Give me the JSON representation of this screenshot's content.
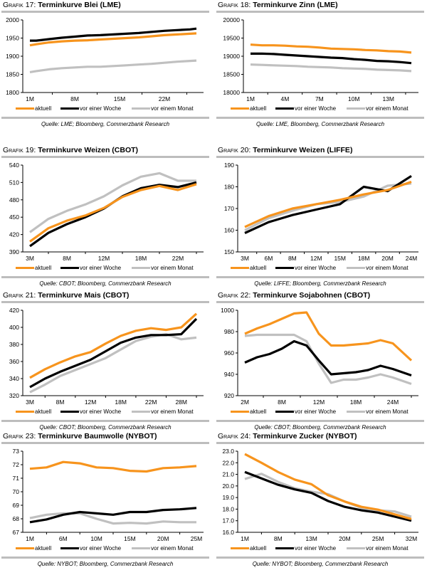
{
  "legend": {
    "aktuell": "aktuell",
    "woche": "vor einer Woche",
    "monat": "vor einem Monat"
  },
  "colors": {
    "aktuell": "#f7941d",
    "woche": "#000000",
    "monat": "#c0c0c0"
  },
  "chart_data": [
    {
      "type": "line",
      "grafik_label": "Grafik 17:",
      "title": "Terminkurve Blei (LME)",
      "source": "Quelle: LME; Bloomberg, Commerzbank Research",
      "xlabel": "",
      "ylabel": "",
      "x_ticks": [
        "1M",
        "8M",
        "15M",
        "22M"
      ],
      "x_tick_positions": [
        1,
        8,
        15,
        22
      ],
      "x_range": [
        1,
        27
      ],
      "ylim": [
        1800,
        2000
      ],
      "y_ticks": [
        1800,
        1850,
        1900,
        1950,
        2000
      ],
      "y_decimals": 0,
      "grid": false,
      "legend_position": "bottom",
      "x": [
        1,
        2,
        4,
        6,
        8,
        10,
        12,
        14,
        16,
        18,
        20,
        22,
        24,
        26,
        27
      ],
      "series": [
        {
          "name": "aktuell",
          "values": [
            1930,
            1933,
            1938,
            1941,
            1943,
            1944,
            1946,
            1948,
            1950,
            1952,
            1955,
            1958,
            1960,
            1962,
            1963
          ]
        },
        {
          "name": "vor einer Woche",
          "values": [
            1943,
            1943,
            1947,
            1951,
            1954,
            1957,
            1958,
            1960,
            1962,
            1964,
            1967,
            1970,
            1972,
            1974,
            1976
          ]
        },
        {
          "name": "vor einem Monat",
          "values": [
            1856,
            1859,
            1864,
            1867,
            1869,
            1871,
            1871,
            1873,
            1875,
            1877,
            1879,
            1882,
            1885,
            1887,
            1888
          ]
        }
      ]
    },
    {
      "type": "line",
      "grafik_label": "Grafik 18:",
      "title": "Terminkurve Zinn (LME)",
      "source": "Quelle: LME, Bloomberg, Commerzbank Research",
      "xlabel": "",
      "ylabel": "",
      "x_ticks": [
        "1M",
        "4M",
        "7M",
        "10M",
        "13M"
      ],
      "x_tick_positions": [
        1,
        4,
        7,
        10,
        13
      ],
      "x_range": [
        1,
        15
      ],
      "ylim": [
        18000,
        20000
      ],
      "y_ticks": [
        18000,
        18500,
        19000,
        19500,
        20000
      ],
      "y_decimals": 0,
      "grid": false,
      "legend_position": "bottom",
      "x": [
        1,
        2,
        3,
        4,
        5,
        6,
        7,
        8,
        9,
        10,
        11,
        12,
        13,
        14,
        15
      ],
      "series": [
        {
          "name": "aktuell",
          "values": [
            19320,
            19300,
            19300,
            19290,
            19270,
            19260,
            19240,
            19210,
            19200,
            19190,
            19170,
            19160,
            19140,
            19130,
            19100
          ]
        },
        {
          "name": "vor einer Woche",
          "values": [
            19070,
            19070,
            19060,
            19040,
            19020,
            19000,
            18980,
            18960,
            18950,
            18920,
            18900,
            18870,
            18860,
            18840,
            18810
          ]
        },
        {
          "name": "vor einem Monat",
          "values": [
            18770,
            18760,
            18750,
            18740,
            18730,
            18710,
            18700,
            18690,
            18670,
            18660,
            18650,
            18630,
            18620,
            18610,
            18590
          ]
        }
      ]
    },
    {
      "type": "line",
      "grafik_label": "Grafik 19:",
      "title": "Terminkurve Weizen (CBOT)",
      "source": "Quelle: CBOT; Bloomberg, Commerzbank Research",
      "xlabel": "",
      "ylabel": "",
      "x_ticks": [
        "3M",
        "8M",
        "12M",
        "18M",
        "22M"
      ],
      "x_tick_positions": [
        0,
        2,
        4,
        6,
        8
      ],
      "x_range": [
        0,
        9
      ],
      "ylim": [
        390,
        540
      ],
      "y_ticks": [
        390,
        420,
        450,
        480,
        510,
        540
      ],
      "y_decimals": 0,
      "grid": false,
      "legend_position": "bottom",
      "x": [
        0,
        1,
        2,
        3,
        4,
        5,
        6,
        7,
        8,
        9
      ],
      "series": [
        {
          "name": "aktuell",
          "values": [
            408,
            431,
            444,
            453,
            466,
            485,
            497,
            504,
            497,
            507
          ]
        },
        {
          "name": "vor einer Woche",
          "values": [
            400,
            423,
            438,
            450,
            465,
            486,
            500,
            506,
            502,
            510
          ]
        },
        {
          "name": "vor einem Monat",
          "values": [
            424,
            447,
            461,
            472,
            486,
            505,
            520,
            526,
            513,
            513
          ]
        }
      ]
    },
    {
      "type": "line",
      "grafik_label": "Grafik 20:",
      "title": "Terminkurve Weizen (LIFFE)",
      "source": "Quelle: LIFFE; Bloomberg, Commerzbank Research",
      "xlabel": "",
      "ylabel": "",
      "x_ticks": [
        "3M",
        "6M",
        "8M",
        "12M",
        "15M",
        "18M",
        "20M",
        "24M"
      ],
      "x_tick_positions": [
        0,
        1,
        2,
        3,
        4,
        5,
        6,
        7
      ],
      "x_range": [
        0,
        7
      ],
      "ylim": [
        150,
        190
      ],
      "y_ticks": [
        150,
        160,
        170,
        180,
        190
      ],
      "y_decimals": 0,
      "grid": false,
      "legend_position": "bottom",
      "x": [
        0,
        1,
        2,
        3,
        4,
        5,
        6,
        7
      ],
      "series": [
        {
          "name": "aktuell",
          "values": [
            161.5,
            166.5,
            170,
            172,
            174,
            176.5,
            178.5,
            182.3
          ]
        },
        {
          "name": "vor einer Woche",
          "values": [
            158.7,
            163.7,
            167,
            169.5,
            172,
            180,
            178,
            185
          ]
        },
        {
          "name": "vor einem Monat",
          "values": [
            160,
            165.5,
            169,
            172,
            173,
            175.5,
            180.5,
            181.5
          ]
        }
      ]
    },
    {
      "type": "line",
      "grafik_label": "Grafik 21:",
      "title": "Terminkurve Mais (CBOT)",
      "source": "Quelle: CBOT; Bloomberg, Commerzbank Research",
      "xlabel": "",
      "ylabel": "",
      "x_ticks": [
        "3M",
        "8M",
        "12M",
        "18M",
        "22M",
        "28M"
      ],
      "x_tick_positions": [
        0,
        2,
        4,
        6,
        8,
        10
      ],
      "x_range": [
        0,
        11
      ],
      "ylim": [
        320,
        420
      ],
      "y_ticks": [
        320,
        340,
        360,
        380,
        400,
        420
      ],
      "y_decimals": 0,
      "grid": false,
      "legend_position": "bottom",
      "x": [
        0,
        1,
        2,
        3,
        4,
        5,
        6,
        7,
        8,
        9,
        10,
        11
      ],
      "series": [
        {
          "name": "aktuell",
          "values": [
            341,
            351,
            359,
            366,
            371,
            381,
            390,
            396,
            399,
            397,
            400,
            416
          ]
        },
        {
          "name": "vor einer Woche",
          "values": [
            330,
            340,
            348,
            355,
            362,
            372,
            382,
            388,
            391,
            391,
            392,
            410
          ]
        },
        {
          "name": "vor einem Monat",
          "values": [
            324,
            333,
            343,
            350,
            357,
            364,
            374,
            384,
            389,
            392,
            386,
            388
          ]
        }
      ]
    },
    {
      "type": "line",
      "grafik_label": "Grafik 22:",
      "title": "Terminkurve Sojabohnen (CBOT)",
      "source": "Quelle: CBOT; Bloomberg, Commerzbank Research",
      "xlabel": "",
      "ylabel": "",
      "x_ticks": [
        "2M",
        "8M",
        "12M",
        "18M",
        "24M"
      ],
      "x_tick_positions": [
        0,
        3,
        6,
        9,
        12
      ],
      "x_range": [
        0,
        13.5
      ],
      "ylim": [
        920,
        1000
      ],
      "y_ticks": [
        920,
        940,
        960,
        980,
        1000
      ],
      "y_decimals": 0,
      "grid": false,
      "legend_position": "bottom",
      "x": [
        0,
        1,
        2,
        3,
        4,
        5,
        6,
        7,
        8,
        9,
        10,
        11,
        12,
        13.5
      ],
      "series": [
        {
          "name": "aktuell",
          "values": [
            978,
            983,
            987,
            992,
            997,
            998,
            978,
            967,
            967,
            968,
            969,
            972,
            969,
            953
          ]
        },
        {
          "name": "vor einer Woche",
          "values": [
            951,
            956,
            959,
            964,
            971,
            967,
            953,
            940,
            941,
            942,
            944,
            948,
            945,
            939
          ]
        },
        {
          "name": "vor einem Monat",
          "values": [
            976,
            977,
            977,
            977,
            977,
            971,
            950,
            932,
            935,
            935,
            937,
            940,
            937,
            931
          ]
        }
      ]
    },
    {
      "type": "line",
      "grafik_label": "Grafik 23:",
      "title": "Terminkurve Baumwolle (NYBOT)",
      "source": "Quelle: NYBOT; Bloomberg, Commerzbank Research",
      "xlabel": "",
      "ylabel": "",
      "x_ticks": [
        "1M",
        "6M",
        "10M",
        "15M",
        "20M",
        "25M"
      ],
      "x_tick_positions": [
        0,
        2,
        4,
        6,
        8,
        10
      ],
      "x_range": [
        0,
        10
      ],
      "ylim": [
        67,
        73
      ],
      "y_ticks": [
        67,
        68,
        69,
        70,
        71,
        72,
        73
      ],
      "y_decimals": 0,
      "grid": false,
      "legend_position": "bottom",
      "x": [
        0,
        1,
        2,
        3,
        4,
        5,
        6,
        7,
        8,
        9,
        10
      ],
      "series": [
        {
          "name": "aktuell",
          "values": [
            71.7,
            71.8,
            72.2,
            72.1,
            71.8,
            71.75,
            71.55,
            71.5,
            71.75,
            71.8,
            71.9
          ]
        },
        {
          "name": "vor einer Woche",
          "values": [
            67.75,
            67.95,
            68.3,
            68.5,
            68.4,
            68.3,
            68.5,
            68.5,
            68.65,
            68.7,
            68.8
          ]
        },
        {
          "name": "vor einem Monat",
          "values": [
            68.05,
            68.3,
            68.4,
            68.4,
            68.0,
            67.65,
            67.7,
            67.65,
            67.8,
            67.75,
            67.75
          ]
        }
      ]
    },
    {
      "type": "line",
      "grafik_label": "Grafik 24:",
      "title": "Terminkurve Zucker (NYBOT)",
      "source": "Quelle: NYBOT; Bloomberg, Commerzbank Research",
      "xlabel": "",
      "ylabel": "",
      "x_ticks": [
        "1M",
        "8M",
        "13M",
        "20M",
        "25M",
        "32M"
      ],
      "x_tick_positions": [
        0,
        2,
        4,
        6,
        8,
        10
      ],
      "x_range": [
        0,
        10
      ],
      "ylim": [
        16.0,
        23.0
      ],
      "y_ticks": [
        16.0,
        17.0,
        18.0,
        19.0,
        20.0,
        21.0,
        22.0,
        23.0
      ],
      "y_decimals": 1,
      "grid": false,
      "legend_position": "bottom",
      "x": [
        0,
        1,
        2,
        3,
        4,
        5,
        6,
        7,
        8,
        9,
        10
      ],
      "series": [
        {
          "name": "aktuell",
          "values": [
            22.75,
            22.0,
            21.2,
            20.55,
            20.15,
            19.2,
            18.65,
            18.2,
            17.95,
            17.55,
            17.15
          ]
        },
        {
          "name": "vor einer Woche",
          "values": [
            21.2,
            20.65,
            20.1,
            19.7,
            19.4,
            18.7,
            18.2,
            17.9,
            17.7,
            17.35,
            17.0
          ]
        },
        {
          "name": "vor einem Monat",
          "values": [
            20.6,
            21.05,
            20.35,
            19.8,
            19.5,
            19.3,
            18.65,
            18.1,
            17.9,
            17.8,
            17.35
          ]
        }
      ]
    }
  ]
}
